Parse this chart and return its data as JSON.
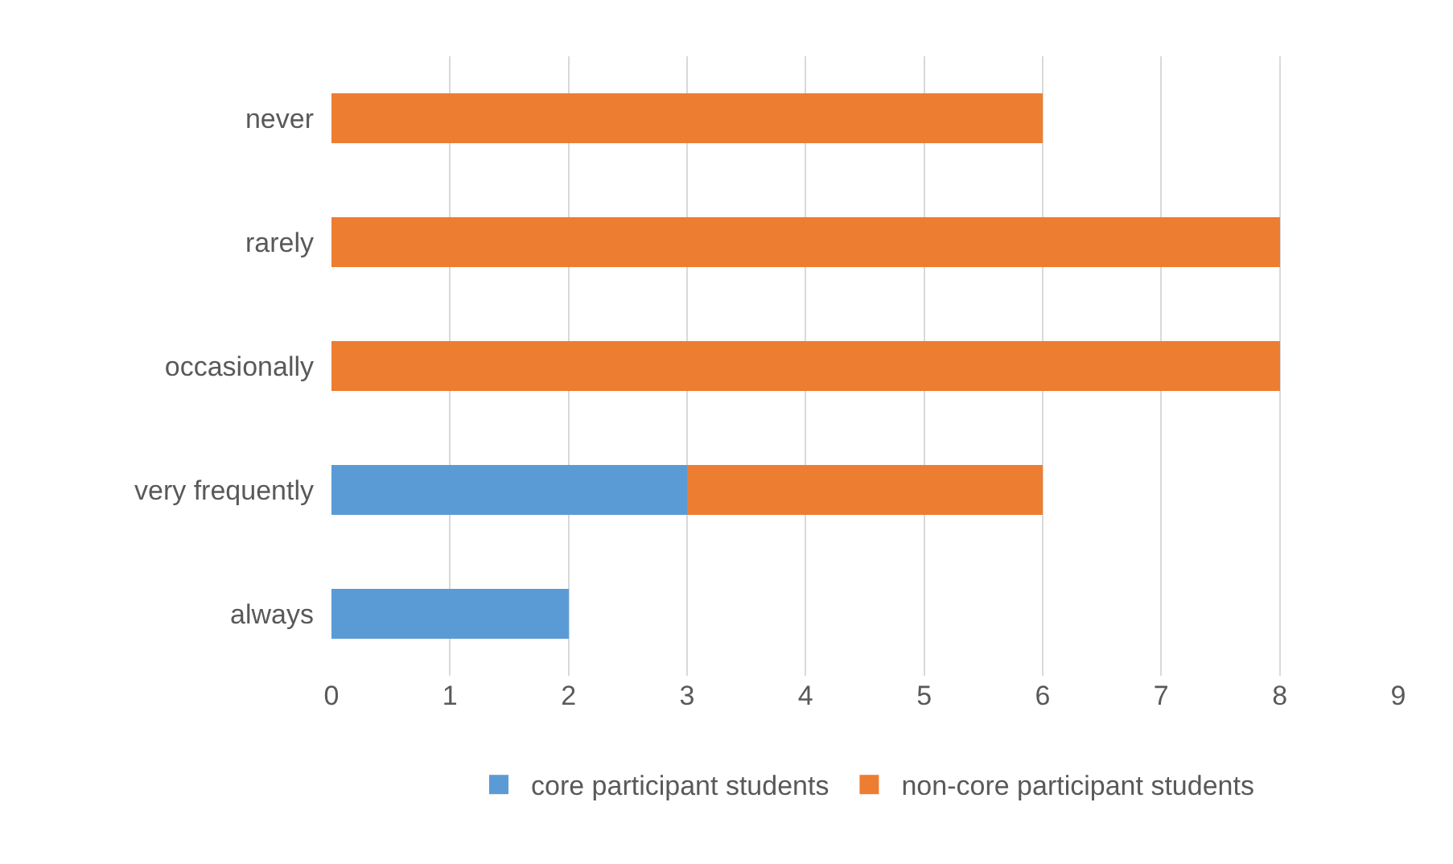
{
  "chart_data": {
    "type": "bar",
    "orientation": "horizontal",
    "stacked": true,
    "categories": [
      "never",
      "rarely",
      "occasionally",
      "very frequently",
      "always"
    ],
    "series": [
      {
        "name": "core participant students",
        "color": "#5b9bd5",
        "values": [
          0,
          0,
          0,
          3,
          2
        ]
      },
      {
        "name": "non-core participant students",
        "color": "#ed7d31",
        "values": [
          6,
          8,
          8,
          3,
          0
        ]
      }
    ],
    "xlim": [
      0,
      9
    ],
    "xticks": [
      0,
      1,
      2,
      3,
      4,
      5,
      6,
      7,
      8,
      9
    ],
    "grid": "x",
    "legend": "bottom"
  }
}
